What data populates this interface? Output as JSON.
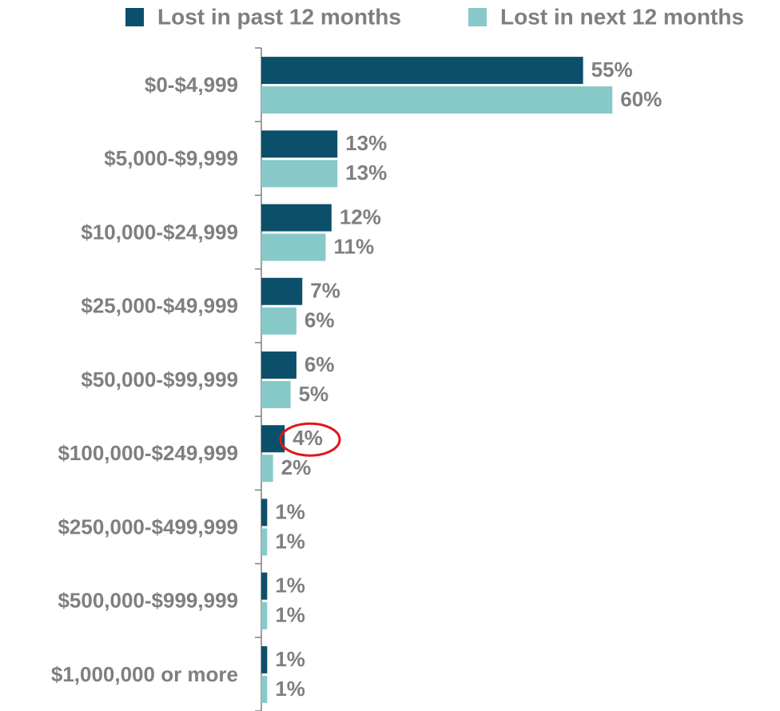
{
  "chart_data": {
    "type": "bar",
    "orientation": "horizontal",
    "categories": [
      "$0-$4,999",
      "$5,000-$9,999",
      "$10,000-$24,999",
      "$25,000-$49,999",
      "$50,000-$99,999",
      "$100,000-$249,999",
      "$250,000-$499,999",
      "$500,000-$999,999",
      "$1,000,000 or more"
    ],
    "series": [
      {
        "name": "Lost in past 12 months",
        "color": "#0b4f6b",
        "values": [
          55,
          13,
          12,
          7,
          6,
          4,
          1,
          1,
          1
        ],
        "value_labels": [
          "55%",
          "13%",
          "12%",
          "7%",
          "6%",
          "4%",
          "1%",
          "1%",
          "1%"
        ]
      },
      {
        "name": "Lost in next 12 months",
        "color": "#86c9c8",
        "values": [
          60,
          13,
          11,
          6,
          5,
          2,
          1,
          1,
          1
        ],
        "value_labels": [
          "60%",
          "13%",
          "11%",
          "6%",
          "5%",
          "2%",
          "1%",
          "1%",
          "1%"
        ]
      }
    ],
    "legend": "top"
  }
}
